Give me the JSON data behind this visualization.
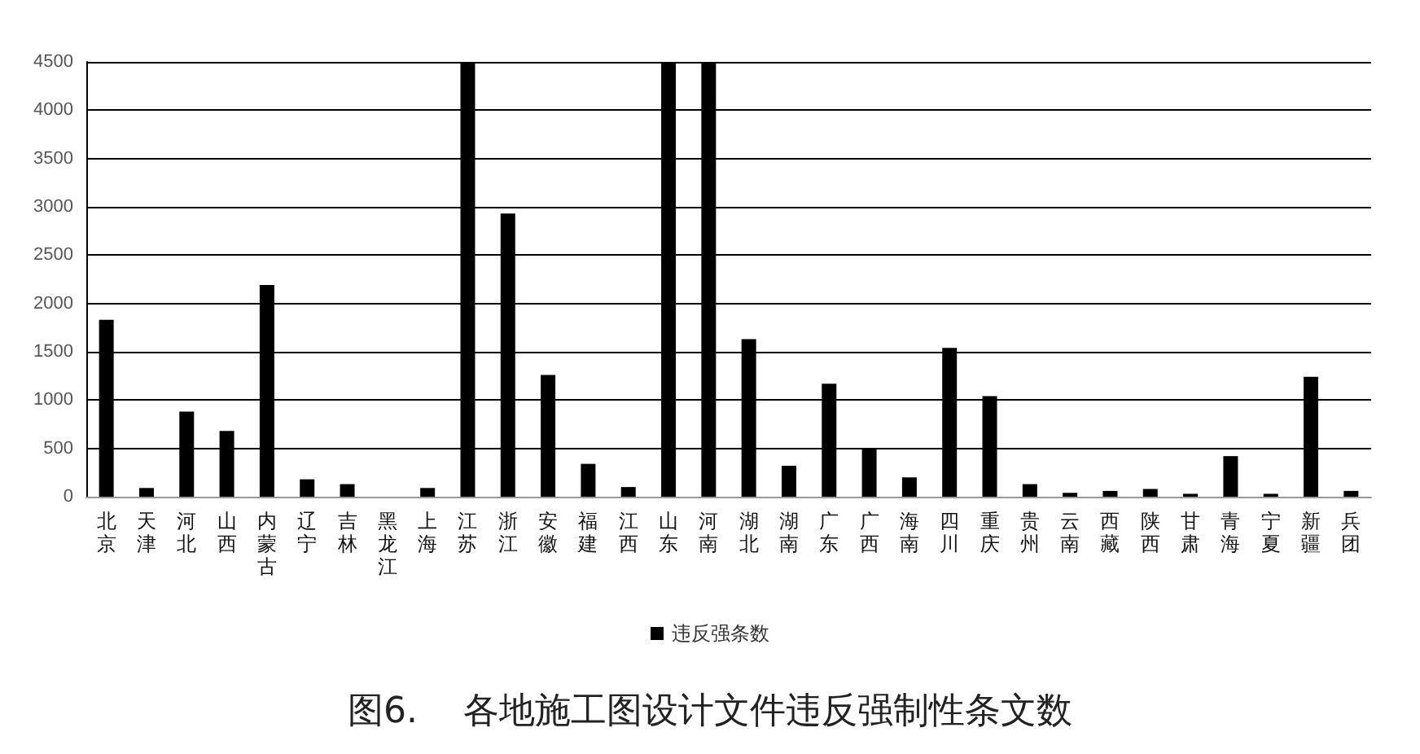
{
  "chart_data": {
    "type": "bar",
    "title": "图6.    各地施工图设计文件违反强制性条文数",
    "categories": [
      "北京",
      "天津",
      "河北",
      "山西",
      "内蒙古",
      "辽宁",
      "吉林",
      "黑龙江",
      "上海",
      "江苏",
      "浙江",
      "安徽",
      "福建",
      "江西",
      "山东",
      "河南",
      "湖北",
      "湖南",
      "广东",
      "广西",
      "海南",
      "四川",
      "重庆",
      "贵州",
      "云南",
      "西藏",
      "陕西",
      "甘肃",
      "青海",
      "宁夏",
      "新疆",
      "兵团"
    ],
    "series": [
      {
        "name": "违反强条数",
        "color": "#000000",
        "values": [
          1830,
          90,
          880,
          680,
          2190,
          180,
          130,
          0,
          90,
          4500,
          2930,
          1260,
          340,
          100,
          4500,
          4500,
          1630,
          320,
          1170,
          500,
          200,
          1540,
          1040,
          130,
          40,
          60,
          80,
          30,
          420,
          30,
          1240,
          60
        ]
      }
    ],
    "ylim": [
      0,
      4500
    ],
    "yticks": [
      0,
      500,
      1000,
      1500,
      2000,
      2500,
      3000,
      3500,
      4000,
      4500
    ],
    "grid": "y",
    "legend": "bottom"
  }
}
